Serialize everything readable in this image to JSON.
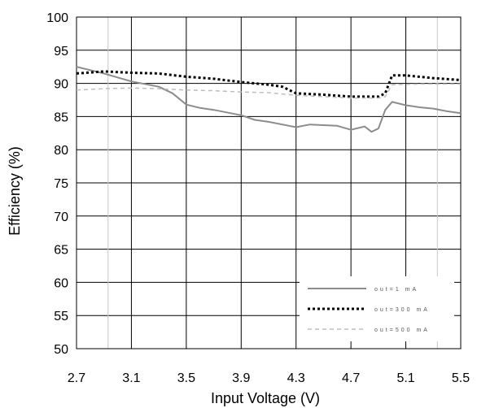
{
  "chart_data": {
    "type": "line",
    "xlabel": "Input Voltage (V)",
    "ylabel": "Efficiency (%)",
    "xlim": [
      2.7,
      5.5
    ],
    "ylim": [
      50,
      100
    ],
    "x_ticks": [
      "2.7",
      "3.1",
      "3.5",
      "3.9",
      "4.3",
      "4.7",
      "5.1",
      "5.5"
    ],
    "y_ticks": [
      "50",
      "55",
      "60",
      "65",
      "70",
      "75",
      "80",
      "85",
      "90",
      "95",
      "100"
    ],
    "grid": true,
    "legend_position": "bottom-right",
    "series": [
      {
        "name": "out=1 mA",
        "style": "solid",
        "color": "#8c8c8c",
        "x": [
          2.7,
          2.9,
          3.1,
          3.3,
          3.4,
          3.5,
          3.6,
          3.7,
          3.9,
          4.0,
          4.1,
          4.2,
          4.3,
          4.4,
          4.5,
          4.6,
          4.7,
          4.8,
          4.85,
          4.9,
          4.95,
          5.0,
          5.1,
          5.2,
          5.3,
          5.4,
          5.5
        ],
        "values": [
          92.5,
          91.5,
          90.3,
          89.5,
          88.5,
          86.8,
          86.3,
          86.0,
          85.2,
          84.5,
          84.2,
          83.8,
          83.4,
          83.8,
          83.7,
          83.6,
          83.0,
          83.5,
          82.7,
          83.2,
          86.0,
          87.2,
          86.7,
          86.4,
          86.2,
          85.8,
          85.5
        ]
      },
      {
        "name": "out=300 mA",
        "style": "dotted",
        "color": "#000000",
        "x": [
          2.7,
          2.9,
          3.1,
          3.3,
          3.5,
          3.7,
          3.9,
          4.1,
          4.2,
          4.3,
          4.5,
          4.7,
          4.9,
          4.95,
          5.0,
          5.1,
          5.3,
          5.5
        ],
        "values": [
          91.5,
          91.8,
          91.6,
          91.5,
          91.0,
          90.7,
          90.2,
          89.8,
          89.5,
          88.5,
          88.3,
          88.0,
          88.0,
          88.5,
          91.2,
          91.2,
          90.8,
          90.5
        ]
      },
      {
        "name": "out=500 mA",
        "style": "dashed",
        "color": "#bdbdbd",
        "x": [
          2.7,
          2.9,
          3.1,
          3.3,
          3.5,
          3.7,
          3.9,
          4.1,
          4.3,
          4.5,
          4.7,
          4.9,
          4.95,
          5.0,
          5.2,
          5.5
        ],
        "values": [
          89.0,
          89.2,
          89.3,
          89.2,
          89.0,
          88.9,
          88.7,
          88.6,
          88.2,
          88.0,
          87.8,
          87.8,
          88.0,
          89.8,
          89.9,
          89.9
        ]
      }
    ]
  }
}
